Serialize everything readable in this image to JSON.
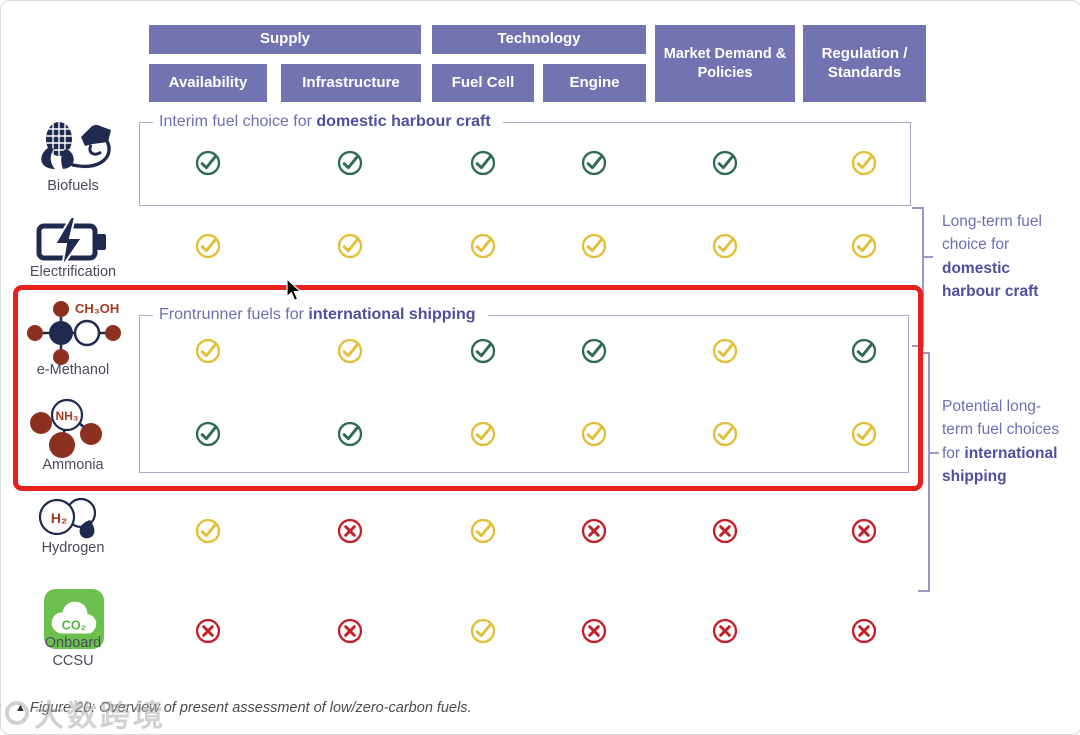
{
  "header": {
    "groups": [
      {
        "label": "Supply"
      },
      {
        "label": "Technology"
      }
    ],
    "columns": [
      "Availability",
      "Infrastructure",
      "Fuel Cell",
      "Engine",
      "Market Demand & Policies",
      "Regulation / Standards"
    ]
  },
  "rows": [
    {
      "fuel": "Biofuels",
      "icon": "biofuels-icon",
      "marks": [
        "green-check",
        "green-check",
        "green-check",
        "green-check",
        "green-check",
        "yellow-check"
      ]
    },
    {
      "fuel": "Electrification",
      "icon": "battery-charging-icon",
      "marks": [
        "yellow-check",
        "yellow-check",
        "yellow-check",
        "yellow-check",
        "yellow-check",
        "yellow-check"
      ]
    },
    {
      "fuel": "e-Methanol",
      "icon": "methanol-molecule-icon",
      "formula": "CH₃OH",
      "marks": [
        "yellow-check",
        "yellow-check",
        "green-check",
        "green-check",
        "yellow-check",
        "green-check"
      ]
    },
    {
      "fuel": "Ammonia",
      "icon": "ammonia-molecule-icon",
      "formula": "NH₃",
      "marks": [
        "green-check",
        "green-check",
        "yellow-check",
        "yellow-check",
        "yellow-check",
        "yellow-check"
      ]
    },
    {
      "fuel": "Hydrogen",
      "icon": "hydrogen-cloud-icon",
      "formula": "H₂",
      "marks": [
        "yellow-check",
        "red-cross",
        "yellow-check",
        "red-cross",
        "red-cross",
        "red-cross"
      ]
    },
    {
      "fuel": "Onboard CCSU",
      "icon": "co2-capture-icon",
      "formula": "CO₂",
      "marks": [
        "red-cross",
        "red-cross",
        "yellow-check",
        "red-cross",
        "red-cross",
        "red-cross"
      ]
    }
  ],
  "annotations": {
    "interim": {
      "text": "Interim fuel choice for ",
      "bold": "domestic harbour craft"
    },
    "frontrunner": {
      "text": "Frontrunner fuels for ",
      "bold": "international shipping"
    },
    "right_top": {
      "text": "Long-term fuel choice for ",
      "bold": "domestic harbour craft"
    },
    "right_bottom": {
      "text": "Potential long-term fuel choices for ",
      "bold": "international shipping"
    }
  },
  "caption": {
    "marker": "▲",
    "text": "Figure 20: Overview of present assessment of low/zero-carbon fuels."
  },
  "watermark": {
    "text": "大数跨境"
  },
  "colors": {
    "header_bg": "#7473b2",
    "positive": "#2f6b54",
    "moderate": "#e3bf39",
    "negative": "#c2232b",
    "highlight_box": "#e8201d",
    "annotation": "#6f6eb2",
    "annotation_bold": "#504f9e",
    "icon_navy": "#202a4e",
    "icon_red": "#8c3120",
    "ccsu_green": "#6cc14e"
  }
}
